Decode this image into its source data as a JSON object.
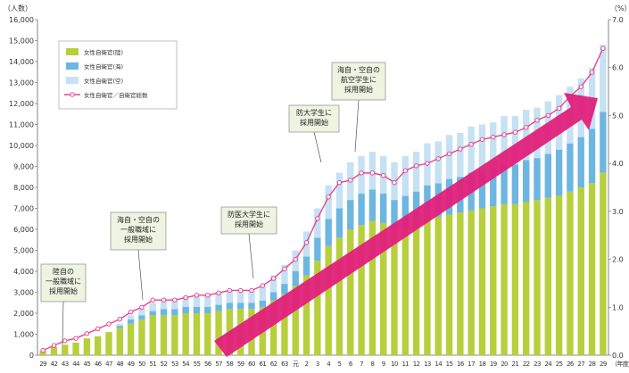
{
  "chart_data": {
    "type": "bar",
    "title": "",
    "ylabel_left": "（人数）",
    "ylabel_right": "（%）",
    "xunit": "（年度）",
    "ylim_left": [
      0,
      16000
    ],
    "ylim_right": [
      0,
      7.0
    ],
    "yticks_left": [
      "0",
      "1,000",
      "2,000",
      "3,000",
      "4,000",
      "5,000",
      "6,000",
      "7,000",
      "8,000",
      "9,000",
      "10,000",
      "11,000",
      "12,000",
      "13,000",
      "14,000",
      "15,000",
      "16,000"
    ],
    "yticks_right": [
      "0.0",
      "1.0",
      "2.0",
      "3.0",
      "4.0",
      "5.0",
      "6.0",
      "7.0"
    ],
    "categories": [
      "29",
      "42",
      "43",
      "44",
      "45",
      "46",
      "47",
      "48",
      "49",
      "50",
      "51",
      "52",
      "53",
      "54",
      "55",
      "56",
      "57",
      "58",
      "59",
      "60",
      "61",
      "62",
      "63",
      "元",
      "2",
      "3",
      "4",
      "5",
      "6",
      "7",
      "8",
      "9",
      "10",
      "11",
      "12",
      "13",
      "14",
      "15",
      "16",
      "17",
      "18",
      "19",
      "20",
      "21",
      "22",
      "23",
      "24",
      "25",
      "26",
      "27",
      "28",
      "29"
    ],
    "legend": [
      "女性自衛官(陸)",
      "女性自衛官(海)",
      "女性自衛官(空)",
      "女性自衛官／自衛官総数"
    ],
    "legend_position": "top-left",
    "series": [
      {
        "name": "女性自衛官(陸)",
        "values": [
          200,
          400,
          500,
          600,
          800,
          900,
          1100,
          1300,
          1500,
          1700,
          1900,
          1900,
          1900,
          2000,
          2000,
          2000,
          2100,
          2200,
          2200,
          2200,
          2300,
          2600,
          2900,
          3300,
          3800,
          4500,
          5200,
          5600,
          6000,
          6200,
          6400,
          6300,
          6000,
          6100,
          6300,
          6500,
          6600,
          6700,
          6800,
          6900,
          7000,
          7100,
          7200,
          7200,
          7300,
          7400,
          7500,
          7600,
          7800,
          8000,
          8200,
          8700
        ]
      },
      {
        "name": "女性自衛官(海)",
        "values": [
          0,
          0,
          0,
          0,
          0,
          0,
          0,
          100,
          200,
          200,
          200,
          300,
          300,
          300,
          300,
          300,
          300,
          300,
          300,
          300,
          300,
          400,
          500,
          700,
          900,
          1100,
          1300,
          1400,
          1400,
          1500,
          1500,
          1400,
          1400,
          1500,
          1500,
          1600,
          1600,
          1700,
          1700,
          1800,
          1800,
          1800,
          1900,
          1900,
          2000,
          2000,
          2100,
          2200,
          2300,
          2400,
          2600,
          2900
        ]
      },
      {
        "name": "女性自衛官(空)",
        "values": [
          0,
          0,
          0,
          0,
          0,
          0,
          0,
          100,
          200,
          300,
          400,
          400,
          500,
          500,
          500,
          600,
          600,
          600,
          600,
          600,
          700,
          800,
          900,
          1000,
          1200,
          1400,
          1600,
          1700,
          1800,
          1800,
          1800,
          1800,
          1800,
          1900,
          1900,
          2000,
          2000,
          2100,
          2100,
          2200,
          2200,
          2200,
          2300,
          2300,
          2400,
          2400,
          2500,
          2600,
          2700,
          2800,
          2900,
          3200
        ]
      },
      {
        "name": "女性自衛官／自衛官総数",
        "axis": "right",
        "values": [
          0.1,
          0.2,
          0.3,
          0.35,
          0.45,
          0.55,
          0.65,
          0.75,
          0.9,
          1.0,
          1.15,
          1.15,
          1.15,
          1.2,
          1.25,
          1.25,
          1.3,
          1.35,
          1.35,
          1.35,
          1.45,
          1.6,
          1.8,
          2.0,
          2.35,
          2.85,
          3.3,
          3.6,
          3.65,
          3.8,
          3.8,
          3.75,
          3.6,
          3.85,
          3.95,
          4.0,
          4.1,
          4.2,
          4.3,
          4.4,
          4.5,
          4.55,
          4.6,
          4.65,
          4.75,
          4.9,
          5.0,
          5.15,
          5.4,
          5.6,
          5.9,
          6.4
        ]
      }
    ],
    "annotations": [
      {
        "lines": [
          "陸自の",
          "一般職域に",
          "採用開始"
        ],
        "at": "42"
      },
      {
        "lines": [
          "海自・空自の",
          "一般職域に",
          "採用開始"
        ],
        "at": "49"
      },
      {
        "lines": [
          "防医大学生に",
          "採用開始"
        ],
        "at": "60"
      },
      {
        "lines": [
          "防大学生に",
          "採用開始"
        ],
        "at": "4"
      },
      {
        "lines": [
          "海自・空自の",
          "航空学生に",
          "採用開始"
        ],
        "at": "5"
      }
    ],
    "colors": {
      "land": "#b7cf3c",
      "sea": "#6db6e2",
      "air": "#c5e1f3",
      "line": "#e6468f",
      "arrow": "#e0207a"
    },
    "grid": false
  }
}
